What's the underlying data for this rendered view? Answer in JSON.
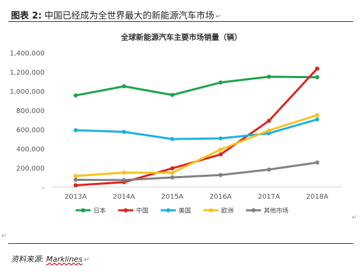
{
  "caption": {
    "label": "图表 2:",
    "text": "中国已经成为全世界最大的新能源汽车市场"
  },
  "source": {
    "label": "资料来源:",
    "value": "Marklines"
  },
  "colors": {
    "日本": "#1aa34a",
    "中国": "#e0221c",
    "美国": "#19b0e6",
    "欧洲": "#f6c21a",
    "其他市场": "#808080"
  },
  "chart_data": {
    "type": "line",
    "title": "全球新能源汽车主要市场销量（辆）",
    "xlabel": "",
    "ylabel": "",
    "categories": [
      "2013A",
      "2014A",
      "2015A",
      "2016A",
      "2017A",
      "2018A"
    ],
    "yticks": [
      "-",
      "200,000",
      "400,000",
      "600,000",
      "800,000",
      "1,000,000",
      "1,200,000",
      "1,400,000"
    ],
    "ylim": [
      0,
      1400000
    ],
    "grid": false,
    "legend": "bottom",
    "series": [
      {
        "name": "日本",
        "values": [
          955000,
          1050000,
          960000,
          1090000,
          1150000,
          1145000
        ]
      },
      {
        "name": "中国",
        "values": [
          18000,
          50000,
          195000,
          340000,
          690000,
          1235000
        ]
      },
      {
        "name": "美国",
        "values": [
          592000,
          575000,
          500000,
          507000,
          560000,
          705000
        ]
      },
      {
        "name": "欧洲",
        "values": [
          115000,
          150000,
          148000,
          390000,
          590000,
          750000
        ]
      },
      {
        "name": "其他市场",
        "values": [
          75000,
          72000,
          100000,
          125000,
          182000,
          255000
        ]
      }
    ]
  }
}
